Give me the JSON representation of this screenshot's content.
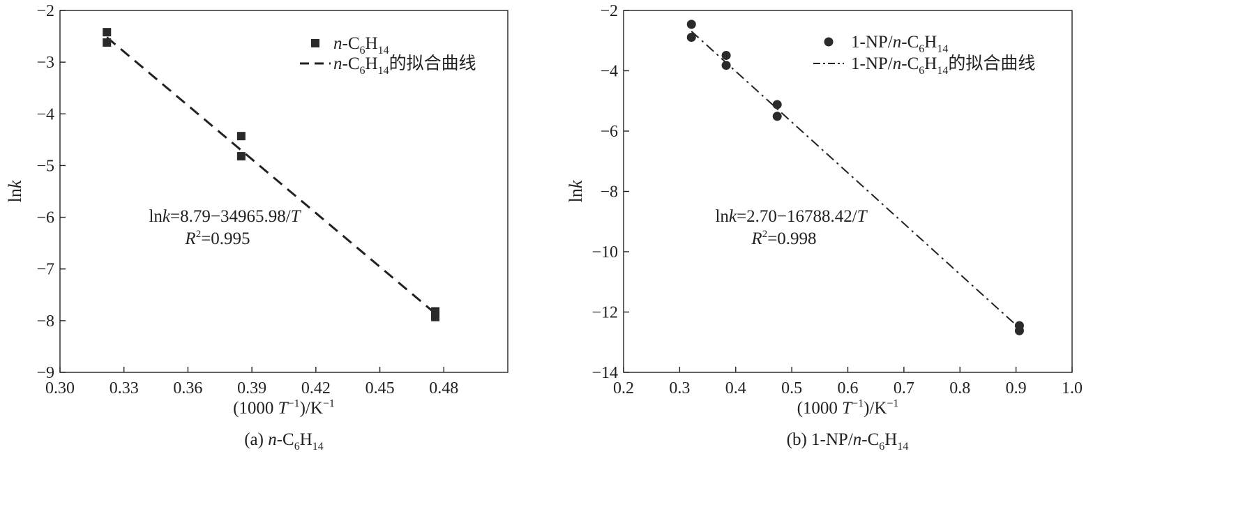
{
  "chart_data": [
    {
      "type": "scatter",
      "caption": "(a) n-C6H14",
      "xlabel": "(1000 T^-1)/K^-1",
      "ylabel": "lnk",
      "xlim": [
        0.3,
        0.51
      ],
      "ylim": [
        -9,
        -2
      ],
      "xticks": [
        0.3,
        0.33,
        0.36,
        0.39,
        0.42,
        0.45,
        0.48
      ],
      "xtick_labels": [
        "0.30",
        "0.33",
        "0.36",
        "0.39",
        "0.42",
        "0.45",
        "0.48"
      ],
      "yticks": [
        -2,
        -3,
        -4,
        -5,
        -6,
        -7,
        -8,
        -9
      ],
      "ytick_labels": [
        "−2",
        "−3",
        "−4",
        "−5",
        "−6",
        "−7",
        "−8",
        "−9"
      ],
      "marker": "square",
      "points": [
        {
          "x": 0.322,
          "y": -2.42
        },
        {
          "x": 0.322,
          "y": -2.62
        },
        {
          "x": 0.385,
          "y": -4.43
        },
        {
          "x": 0.385,
          "y": -4.82
        },
        {
          "x": 0.476,
          "y": -7.82
        },
        {
          "x": 0.476,
          "y": -7.93
        }
      ],
      "fit_line": {
        "style": "dashed",
        "from": [
          0.322,
          -2.52
        ],
        "to": [
          0.476,
          -7.86
        ]
      },
      "legend": {
        "position": "top-right",
        "entries": [
          {
            "kind": "marker",
            "text": "n-C6H14"
          },
          {
            "kind": "line",
            "text": "n-C6H14的拟合曲线"
          }
        ]
      },
      "annotation": {
        "equation": {
          "lhs": "ln",
          "var": "k",
          "rhs": "=8.79−34965.98/",
          "tvar": "T"
        },
        "r2": {
          "var": "R",
          "sup": "2",
          "rhs": "=0.995"
        }
      }
    },
    {
      "type": "scatter",
      "caption": "(b) 1-NP/n-C6H14",
      "xlabel": "(1000 T^-1)/K^-1",
      "ylabel": "lnk",
      "xlim": [
        0.2,
        1.0
      ],
      "ylim": [
        -14,
        -2
      ],
      "xticks": [
        0.2,
        0.3,
        0.4,
        0.5,
        0.6,
        0.7,
        0.8,
        0.9,
        1.0
      ],
      "xtick_labels": [
        "0.2",
        "0.3",
        "0.4",
        "0.5",
        "0.6",
        "0.7",
        "0.8",
        "0.9",
        "1.0"
      ],
      "yticks": [
        -2,
        -4,
        -6,
        -8,
        -10,
        -12,
        -14
      ],
      "ytick_labels": [
        "−2",
        "−4",
        "−6",
        "−8",
        "−10",
        "−12",
        "−14"
      ],
      "marker": "circle",
      "points": [
        {
          "x": 0.321,
          "y": -2.46
        },
        {
          "x": 0.321,
          "y": -2.89
        },
        {
          "x": 0.383,
          "y": -3.49
        },
        {
          "x": 0.383,
          "y": -3.82
        },
        {
          "x": 0.474,
          "y": -5.12
        },
        {
          "x": 0.474,
          "y": -5.51
        },
        {
          "x": 0.906,
          "y": -12.45
        },
        {
          "x": 0.906,
          "y": -12.62
        }
      ],
      "fit_line": {
        "style": "dash-dot",
        "from": [
          0.321,
          -2.69
        ],
        "to": [
          0.906,
          -12.53
        ]
      },
      "legend": {
        "position": "top-right",
        "entries": [
          {
            "kind": "marker",
            "text": "1-NP/n-C6H14"
          },
          {
            "kind": "line",
            "text": "1-NP/n-C6H14的拟合曲线"
          }
        ]
      },
      "annotation": {
        "equation": {
          "lhs": "ln",
          "var": "k",
          "rhs": "=2.70−16788.42/",
          "tvar": "T"
        },
        "r2": {
          "var": "R",
          "sup": "2",
          "rhs": "=0.998"
        }
      }
    }
  ]
}
